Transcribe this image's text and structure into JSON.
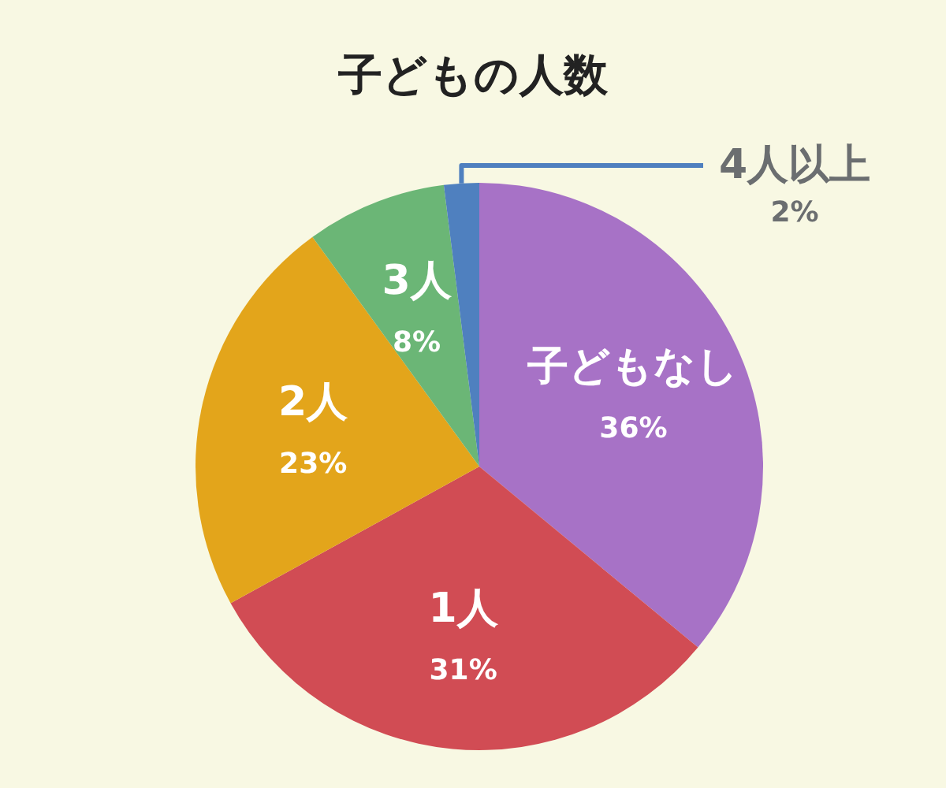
{
  "chart_data": {
    "type": "pie",
    "title": "子どもの人数",
    "categories": [
      "子どもなし",
      "1人",
      "2人",
      "3人",
      "4人以上"
    ],
    "values": [
      36,
      31,
      23,
      8,
      2
    ],
    "colors": [
      "#a772c6",
      "#d14c54",
      "#e3a51b",
      "#6bb676",
      "#4f80bf"
    ],
    "value_labels": [
      "36%",
      "31%",
      "23%",
      "8%",
      "2%"
    ]
  }
}
